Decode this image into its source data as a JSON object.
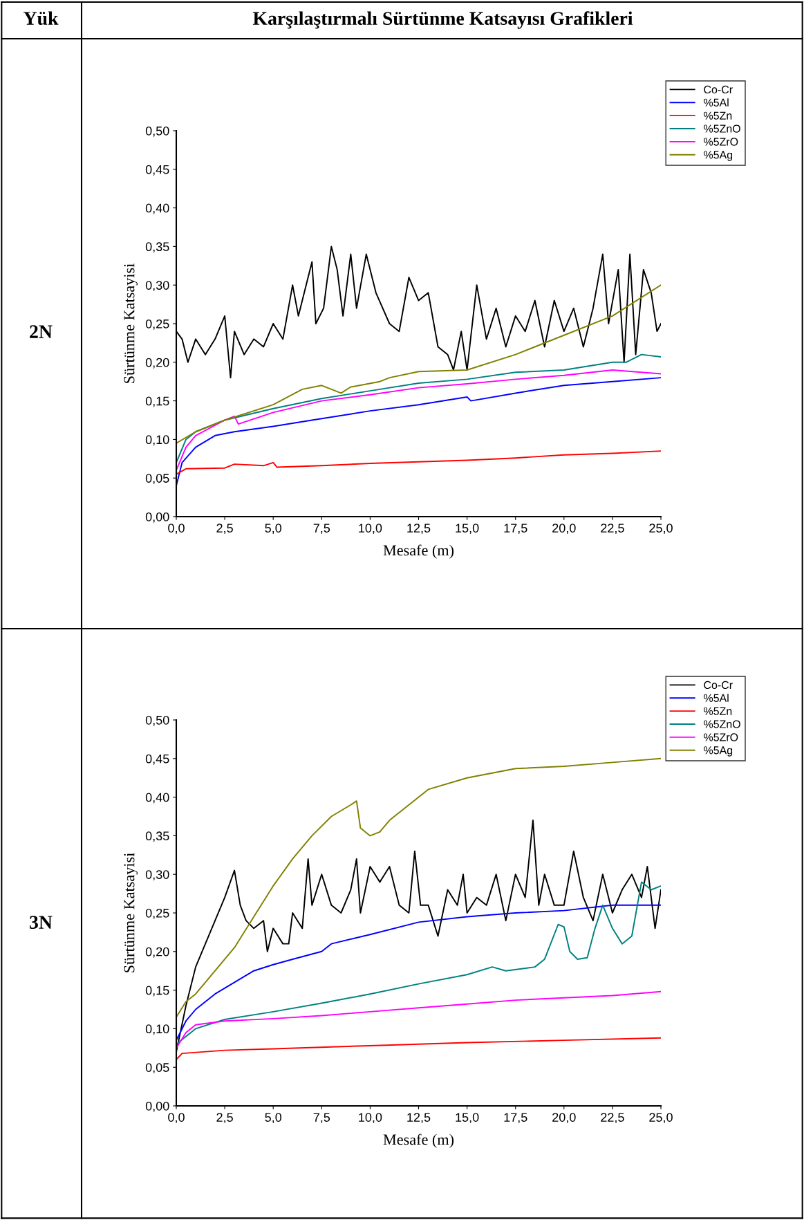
{
  "chart_data": [
    {
      "type": "line",
      "title": "Karşılaştırmalı Sürtünme Katsayısı Grafikleri",
      "annotations": [
        "Yük",
        "2N"
      ],
      "xlabel": "Mesafe (m)",
      "ylabel": "Sürtünme Katsayisi",
      "legend": "top right",
      "grid": false,
      "xlim": [
        0,
        25
      ],
      "xticks": [
        {
          "value": 0,
          "label": "0,0"
        },
        {
          "value": 2.5,
          "label": "2,5"
        },
        {
          "value": 5,
          "label": "5,0"
        },
        {
          "value": 7.5,
          "label": "7,5"
        },
        {
          "value": 10,
          "label": "10,0"
        },
        {
          "value": 12.5,
          "label": "12,5"
        },
        {
          "value": 15,
          "label": "15,0"
        },
        {
          "value": 17.5,
          "label": "17,5"
        },
        {
          "value": 20,
          "label": "20,0"
        },
        {
          "value": 22.5,
          "label": "22,5"
        },
        {
          "value": 25,
          "label": "25,0"
        }
      ],
      "ylim": [
        0,
        0.5
      ],
      "yticks": [
        {
          "value": 0,
          "label": "0,00"
        },
        {
          "value": 0.05,
          "label": "0,05"
        },
        {
          "value": 0.1,
          "label": "0,10"
        },
        {
          "value": 0.15,
          "label": "0,15"
        },
        {
          "value": 0.2,
          "label": "0,20"
        },
        {
          "value": 0.25,
          "label": "0,25"
        },
        {
          "value": 0.3,
          "label": "0,30"
        },
        {
          "value": 0.35,
          "label": "0,35"
        },
        {
          "value": 0.4,
          "label": "0,40"
        },
        {
          "value": 0.45,
          "label": "0,45"
        },
        {
          "value": 0.5,
          "label": "0,50"
        }
      ],
      "series": [
        {
          "name": "Co-Cr",
          "color": "#000000",
          "x": [
            0,
            0.3,
            0.6,
            1,
            1.5,
            2,
            2.5,
            2.8,
            3,
            3.5,
            4,
            4.5,
            5,
            5.5,
            6,
            6.3,
            6.8,
            7,
            7.2,
            7.6,
            8,
            8.3,
            8.6,
            9,
            9.3,
            9.8,
            10.3,
            11,
            11.5,
            12,
            12.5,
            13,
            13.5,
            14,
            14.3,
            14.7,
            15,
            15.5,
            16,
            16.5,
            17,
            17.5,
            18,
            18.5,
            19,
            19.5,
            20,
            20.5,
            21,
            21.5,
            22,
            22.3,
            22.8,
            23.1,
            23.4,
            23.7,
            24.1,
            24.5,
            24.8,
            25
          ],
          "values": [
            0.24,
            0.23,
            0.2,
            0.23,
            0.21,
            0.23,
            0.26,
            0.18,
            0.24,
            0.21,
            0.23,
            0.22,
            0.25,
            0.23,
            0.3,
            0.26,
            0.31,
            0.33,
            0.25,
            0.27,
            0.35,
            0.32,
            0.26,
            0.34,
            0.27,
            0.34,
            0.29,
            0.25,
            0.24,
            0.31,
            0.28,
            0.29,
            0.22,
            0.21,
            0.19,
            0.24,
            0.19,
            0.3,
            0.23,
            0.27,
            0.22,
            0.26,
            0.24,
            0.28,
            0.22,
            0.28,
            0.24,
            0.27,
            0.22,
            0.27,
            0.34,
            0.25,
            0.32,
            0.2,
            0.34,
            0.21,
            0.32,
            0.29,
            0.24,
            0.25
          ]
        },
        {
          "name": "%5Al",
          "color": "#0000ff",
          "x": [
            0,
            0.3,
            1,
            2,
            3,
            5,
            7,
            10,
            12.5,
            15,
            15.2,
            17.5,
            20,
            22.5,
            25
          ],
          "values": [
            0.04,
            0.07,
            0.09,
            0.105,
            0.11,
            0.117,
            0.125,
            0.137,
            0.145,
            0.155,
            0.15,
            0.16,
            0.17,
            0.175,
            0.18
          ]
        },
        {
          "name": "%5Zn",
          "color": "#ff0000",
          "x": [
            0,
            0.5,
            2.5,
            3,
            4.5,
            5,
            5.2,
            7.5,
            10,
            12.5,
            15,
            17.5,
            20,
            22.5,
            25
          ],
          "values": [
            0.055,
            0.062,
            0.063,
            0.068,
            0.066,
            0.07,
            0.064,
            0.066,
            0.069,
            0.071,
            0.073,
            0.076,
            0.08,
            0.082,
            0.085
          ]
        },
        {
          "name": "%5ZnO",
          "color": "#008080",
          "x": [
            0,
            0.5,
            1,
            2.5,
            5,
            7.5,
            10,
            12.5,
            15,
            17.5,
            20,
            22.5,
            23.2,
            24,
            25
          ],
          "values": [
            0.07,
            0.1,
            0.11,
            0.125,
            0.14,
            0.153,
            0.163,
            0.173,
            0.178,
            0.187,
            0.19,
            0.2,
            0.2,
            0.21,
            0.207
          ]
        },
        {
          "name": "%5ZrO",
          "color": "#ff00ff",
          "x": [
            0,
            0.5,
            1,
            2.5,
            3,
            3.2,
            5,
            7.5,
            10,
            12.5,
            15,
            17.5,
            20,
            22.5,
            25
          ],
          "values": [
            0.06,
            0.09,
            0.105,
            0.125,
            0.13,
            0.12,
            0.135,
            0.15,
            0.158,
            0.167,
            0.172,
            0.178,
            0.183,
            0.19,
            0.185
          ]
        },
        {
          "name": "%5Ag",
          "color": "#808000",
          "x": [
            0,
            1,
            2.5,
            5,
            6.5,
            7.5,
            8.5,
            9,
            10.5,
            11,
            12.5,
            15,
            17.5,
            20,
            22.5,
            25
          ],
          "values": [
            0.095,
            0.11,
            0.125,
            0.145,
            0.165,
            0.17,
            0.16,
            0.168,
            0.175,
            0.18,
            0.188,
            0.19,
            0.21,
            0.235,
            0.26,
            0.3
          ]
        }
      ]
    },
    {
      "type": "line",
      "annotations": [
        "3N"
      ],
      "xlabel": "Mesafe (m)",
      "ylabel": "Sürtünme Katsayisi",
      "legend": "top right",
      "grid": false,
      "xlim": [
        0,
        25
      ],
      "xticks": [
        {
          "value": 0,
          "label": "0,0"
        },
        {
          "value": 2.5,
          "label": "2,5"
        },
        {
          "value": 5,
          "label": "5,0"
        },
        {
          "value": 7.5,
          "label": "7,5"
        },
        {
          "value": 10,
          "label": "10,0"
        },
        {
          "value": 12.5,
          "label": "12,5"
        },
        {
          "value": 15,
          "label": "15,0"
        },
        {
          "value": 17.5,
          "label": "17,5"
        },
        {
          "value": 20,
          "label": "20,0"
        },
        {
          "value": 22.5,
          "label": "22,5"
        },
        {
          "value": 25,
          "label": "25,0"
        }
      ],
      "ylim": [
        0,
        0.5
      ],
      "yticks": [
        {
          "value": 0,
          "label": "0,00"
        },
        {
          "value": 0.05,
          "label": "0,05"
        },
        {
          "value": 0.1,
          "label": "0,10"
        },
        {
          "value": 0.15,
          "label": "0,15"
        },
        {
          "value": 0.2,
          "label": "0,20"
        },
        {
          "value": 0.25,
          "label": "0,25"
        },
        {
          "value": 0.3,
          "label": "0,30"
        },
        {
          "value": 0.35,
          "label": "0,35"
        },
        {
          "value": 0.4,
          "label": "0,40"
        },
        {
          "value": 0.45,
          "label": "0,45"
        },
        {
          "value": 0.5,
          "label": "0,50"
        }
      ],
      "series": [
        {
          "name": "Co-Cr",
          "color": "#000000",
          "x": [
            0,
            0.5,
            1,
            1.5,
            2,
            2.5,
            3,
            3.3,
            3.6,
            4,
            4.5,
            4.7,
            5,
            5.5,
            5.8,
            6,
            6.5,
            6.8,
            7,
            7.5,
            8,
            8.5,
            9,
            9.3,
            9.5,
            10,
            10.5,
            11,
            11.5,
            12,
            12.3,
            12.6,
            13,
            13.5,
            14,
            14.5,
            14.8,
            15,
            15.5,
            16,
            16.5,
            17,
            17.5,
            18,
            18.4,
            18.7,
            19,
            19.5,
            20,
            20.5,
            21,
            21.5,
            22,
            22.5,
            23,
            23.5,
            24,
            24.3,
            24.7,
            25
          ],
          "values": [
            0.07,
            0.13,
            0.18,
            0.21,
            0.24,
            0.27,
            0.305,
            0.26,
            0.24,
            0.23,
            0.24,
            0.2,
            0.23,
            0.21,
            0.21,
            0.25,
            0.23,
            0.32,
            0.26,
            0.3,
            0.26,
            0.25,
            0.28,
            0.32,
            0.25,
            0.31,
            0.29,
            0.31,
            0.26,
            0.25,
            0.33,
            0.26,
            0.26,
            0.22,
            0.28,
            0.26,
            0.3,
            0.25,
            0.27,
            0.26,
            0.3,
            0.24,
            0.3,
            0.27,
            0.37,
            0.26,
            0.3,
            0.26,
            0.26,
            0.33,
            0.27,
            0.24,
            0.3,
            0.25,
            0.28,
            0.3,
            0.27,
            0.31,
            0.23,
            0.28
          ]
        },
        {
          "name": "%5Al",
          "color": "#0000ff",
          "x": [
            0,
            0.5,
            1,
            2,
            3,
            4,
            5,
            6,
            7.5,
            8,
            10,
            12.5,
            15,
            17.5,
            20,
            22.5,
            25
          ],
          "values": [
            0.085,
            0.11,
            0.125,
            0.145,
            0.16,
            0.175,
            0.183,
            0.19,
            0.2,
            0.21,
            0.222,
            0.238,
            0.245,
            0.25,
            0.253,
            0.26,
            0.26
          ]
        },
        {
          "name": "%5Zn",
          "color": "#ff0000",
          "x": [
            0,
            0.3,
            2.5,
            5,
            10,
            15,
            20,
            25
          ],
          "values": [
            0.06,
            0.068,
            0.072,
            0.074,
            0.078,
            0.082,
            0.085,
            0.088
          ]
        },
        {
          "name": "%5ZnO",
          "color": "#008080",
          "x": [
            0,
            1,
            2.5,
            5,
            7.5,
            10,
            12.5,
            15,
            16.3,
            17,
            18.5,
            19,
            19.7,
            20,
            20.3,
            20.7,
            21.2,
            21.6,
            22,
            22.5,
            23,
            23.5,
            24,
            24.5,
            25
          ],
          "values": [
            0.08,
            0.1,
            0.112,
            0.122,
            0.133,
            0.145,
            0.158,
            0.17,
            0.18,
            0.175,
            0.18,
            0.19,
            0.235,
            0.232,
            0.2,
            0.19,
            0.192,
            0.23,
            0.26,
            0.23,
            0.21,
            0.22,
            0.29,
            0.28,
            0.285
          ]
        },
        {
          "name": "%5ZrO",
          "color": "#ff00ff",
          "x": [
            0,
            0.5,
            1,
            2.5,
            5,
            7.5,
            10,
            12.5,
            15,
            17.5,
            20,
            22.5,
            25
          ],
          "values": [
            0.075,
            0.095,
            0.105,
            0.11,
            0.113,
            0.117,
            0.122,
            0.127,
            0.132,
            0.137,
            0.14,
            0.143,
            0.148
          ]
        },
        {
          "name": "%5Ag",
          "color": "#808000",
          "x": [
            0,
            0.5,
            1,
            2,
            3,
            4,
            5,
            6,
            7,
            8,
            9,
            9.3,
            9.5,
            10,
            10.5,
            11,
            12,
            13,
            15,
            17.5,
            20,
            22.5,
            25
          ],
          "values": [
            0.115,
            0.135,
            0.145,
            0.175,
            0.205,
            0.245,
            0.285,
            0.32,
            0.35,
            0.375,
            0.39,
            0.395,
            0.36,
            0.35,
            0.355,
            0.37,
            0.39,
            0.41,
            0.425,
            0.437,
            0.44,
            0.445,
            0.45
          ]
        }
      ]
    }
  ]
}
